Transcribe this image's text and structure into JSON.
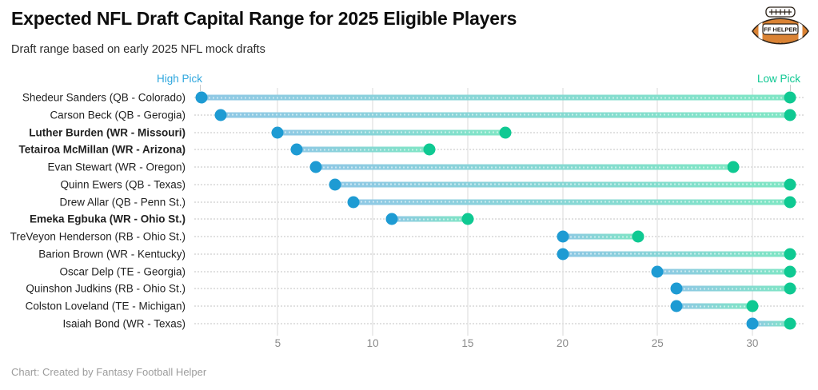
{
  "header": {
    "title": "Expected NFL Draft Capital Range for 2025 Eligible Players",
    "subtitle": "Draft range based on early 2025 NFL mock drafts",
    "logo_text": "FF HELPER"
  },
  "annotations": {
    "high_pick": "High Pick",
    "low_pick": "Low Pick"
  },
  "footer": {
    "credit": "Chart: Created by Fantasy Football Helper"
  },
  "colors": {
    "high_pick_label": "#2fa7de",
    "low_pick_label": "#0fc893",
    "high_dot": "#1e9bd3",
    "low_dot": "#0fc992",
    "bar_start": "#8fc8e5",
    "bar_end": "#7fe6c4",
    "football_orange": "#da8334",
    "football_outline": "#2a2118"
  },
  "chart_data": {
    "type": "dumbbell-range",
    "orientation": "horizontal",
    "title": "Expected NFL Draft Capital Range for 2025 Eligible Players",
    "subtitle": "Draft range based on early 2025 NFL mock drafts",
    "xlabel": "",
    "ylabel": "",
    "x_ticks": [
      5,
      10,
      15,
      20,
      25,
      30
    ],
    "xlim": [
      0.6,
      32.7
    ],
    "grid": "vertical",
    "high_end_label": "High Pick",
    "low_end_label": "Low Pick",
    "players": [
      {
        "label": "Shedeur Sanders (QB - Colorado)",
        "bold": false,
        "high": 1,
        "low": 32
      },
      {
        "label": "Carson Beck (QB - Gerogia)",
        "bold": false,
        "high": 2,
        "low": 32
      },
      {
        "label": "Luther Burden (WR - Missouri)",
        "bold": true,
        "high": 5,
        "low": 17
      },
      {
        "label": "Tetairoa McMillan (WR - Arizona)",
        "bold": true,
        "high": 6,
        "low": 13
      },
      {
        "label": "Evan Stewart (WR - Oregon)",
        "bold": false,
        "high": 7,
        "low": 29
      },
      {
        "label": "Quinn Ewers (QB - Texas)",
        "bold": false,
        "high": 8,
        "low": 32
      },
      {
        "label": "Drew Allar (QB - Penn St.)",
        "bold": false,
        "high": 9,
        "low": 32
      },
      {
        "label": "Emeka Egbuka (WR - Ohio St.)",
        "bold": true,
        "high": 11,
        "low": 15
      },
      {
        "label": "TreVeyon Henderson (RB - Ohio St.)",
        "bold": false,
        "high": 20,
        "low": 24
      },
      {
        "label": "Barion Brown (WR - Kentucky)",
        "bold": false,
        "high": 20,
        "low": 32
      },
      {
        "label": "Oscar Delp (TE - Georgia)",
        "bold": false,
        "high": 25,
        "low": 32
      },
      {
        "label": "Quinshon Judkins (RB - Ohio St.)",
        "bold": false,
        "high": 26,
        "low": 32
      },
      {
        "label": "Colston Loveland (TE - Michigan)",
        "bold": false,
        "high": 26,
        "low": 30
      },
      {
        "label": "Isaiah Bond (WR - Texas)",
        "bold": false,
        "high": 30,
        "low": 32
      }
    ]
  }
}
